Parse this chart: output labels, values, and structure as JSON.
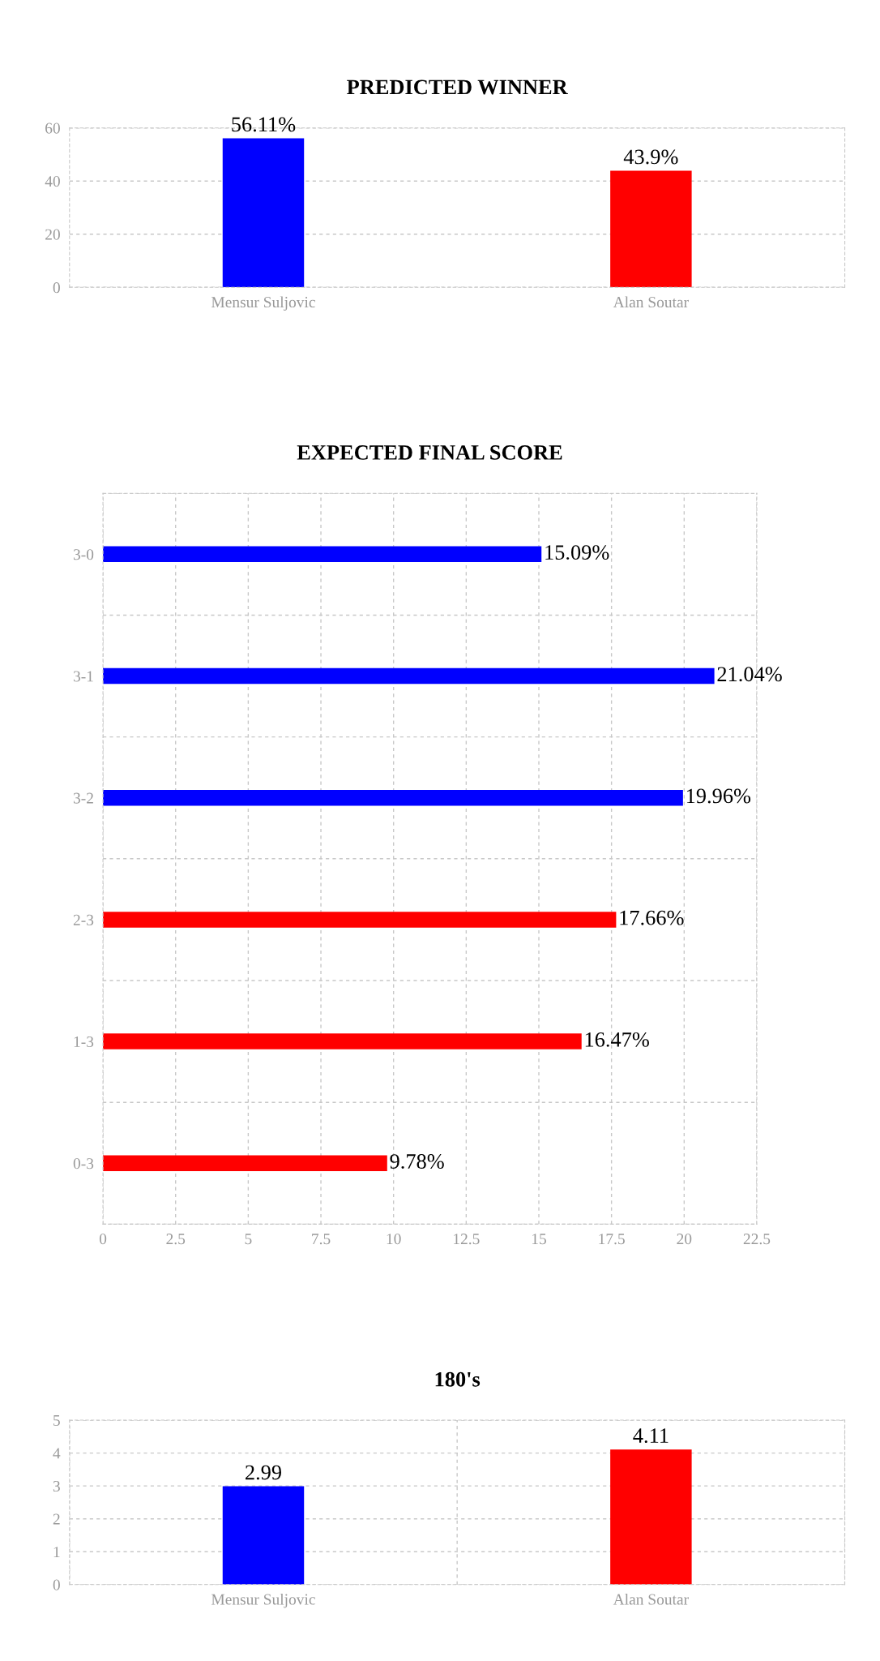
{
  "chart_data": [
    {
      "type": "bar",
      "title": "PREDICTED WINNER",
      "categories": [
        "Mensur Suljovic",
        "Alan Soutar"
      ],
      "values": [
        56.11,
        43.9
      ],
      "colors": [
        "#0000ff",
        "#ff0000"
      ],
      "value_labels": [
        "56.11%",
        "43.9%"
      ],
      "ylim": [
        0,
        60
      ],
      "yticks": [
        0,
        20,
        40,
        60
      ],
      "grid": "y"
    },
    {
      "type": "bar",
      "title": "EXPECTED FINAL SCORE",
      "orientation": "horizontal",
      "categories": [
        "3-0",
        "3-1",
        "3-2",
        "2-3",
        "1-3",
        "0-3"
      ],
      "values": [
        15.09,
        21.04,
        19.96,
        17.66,
        16.47,
        9.78
      ],
      "colors": [
        "#0000ff",
        "#0000ff",
        "#0000ff",
        "#ff0000",
        "#ff0000",
        "#ff0000"
      ],
      "value_labels": [
        "15.09%",
        "21.04%",
        "19.96%",
        "17.66%",
        "16.47%",
        "9.78%"
      ],
      "xlim": [
        0,
        22.5
      ],
      "xticks": [
        0,
        2.5,
        5,
        7.5,
        10,
        12.5,
        15,
        17.5,
        20,
        22.5
      ],
      "grid": true
    },
    {
      "type": "bar",
      "title": "180's",
      "categories": [
        "Mensur Suljovic",
        "Alan Soutar"
      ],
      "values": [
        2.99,
        4.11
      ],
      "colors": [
        "#0000ff",
        "#ff0000"
      ],
      "data_labels": true,
      "ylim": [
        0,
        5
      ],
      "yticks": [
        0,
        1,
        2,
        3,
        4,
        5
      ],
      "grid": true
    }
  ]
}
